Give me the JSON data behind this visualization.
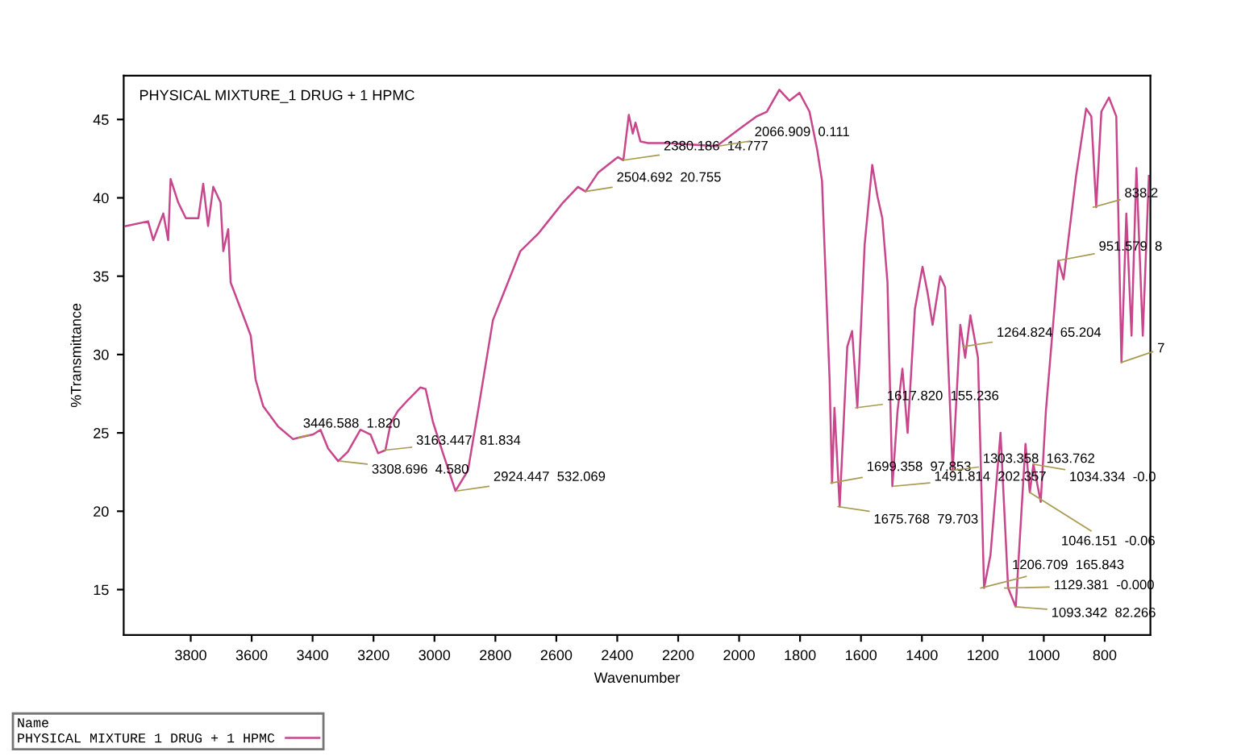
{
  "chart_data": {
    "type": "line",
    "title": "PHYSICAL MIXTURE_1 DRUG + 1 HPMC",
    "xlabel": "Wavenumber",
    "ylabel": "%Transmittance",
    "legend_title": "Name",
    "legend": "bottom left",
    "grid": false,
    "marker": "none",
    "line_style": "solid",
    "xlim": [
      4020,
      650
    ],
    "xticks": [
      3800,
      3600,
      3400,
      3200,
      3000,
      2800,
      2600,
      2400,
      2200,
      2000,
      1800,
      1600,
      1400,
      1200,
      1000,
      800
    ],
    "ylim": [
      12.1,
      47.8
    ],
    "yticks": [
      15,
      20,
      25,
      30,
      35,
      40,
      45
    ],
    "series": [
      {
        "name": "PHYSICAL MIXTURE 1 DRUG + 1 HPMC",
        "color": "#c8468c",
        "x": [
          4013,
          3940,
          3923,
          3890,
          3874,
          3866,
          3841,
          3816,
          3775,
          3759,
          3743,
          3726,
          3702,
          3693,
          3677,
          3669,
          3628,
          3603,
          3587,
          3562,
          3513,
          3464,
          3446,
          3398,
          3374,
          3349,
          3316,
          3284,
          3243,
          3210,
          3185,
          3161,
          3144,
          3120,
          3087,
          3046,
          3029,
          3005,
          2972,
          2931,
          2890,
          2857,
          2808,
          2759,
          2718,
          2660,
          2627,
          2578,
          2529,
          2504,
          2463,
          2398,
          2380,
          2362,
          2349,
          2340,
          2324,
          2299,
          2239,
          2074,
          1992,
          1942,
          1909,
          1868,
          1835,
          1802,
          1769,
          1744,
          1728,
          1703,
          1695,
          1687,
          1670,
          1645,
          1629,
          1612,
          1588,
          1563,
          1546,
          1530,
          1513,
          1497,
          1480,
          1464,
          1447,
          1423,
          1398,
          1381,
          1365,
          1340,
          1324,
          1299,
          1274,
          1258,
          1241,
          1216,
          1196,
          1175,
          1142,
          1117,
          1092,
          1060,
          1046,
          1034,
          1010,
          993,
          952,
          935,
          894,
          861,
          844,
          828,
          811,
          786,
          762,
          745,
          729,
          712,
          696,
          675,
          655
        ],
        "values": [
          38.2,
          38.5,
          37.3,
          39.0,
          37.3,
          41.2,
          39.7,
          38.7,
          38.7,
          40.9,
          38.2,
          40.7,
          39.7,
          36.6,
          38.0,
          34.6,
          32.5,
          31.2,
          28.4,
          26.7,
          25.4,
          24.6,
          24.7,
          24.9,
          25.2,
          24.0,
          23.2,
          23.8,
          25.2,
          24.9,
          23.7,
          23.9,
          25.6,
          26.4,
          27.1,
          27.9,
          27.8,
          25.7,
          23.7,
          21.3,
          22.6,
          26.4,
          32.2,
          34.6,
          36.6,
          37.7,
          38.5,
          39.7,
          40.7,
          40.4,
          41.6,
          42.6,
          42.4,
          45.3,
          44.1,
          44.8,
          43.6,
          43.5,
          43.5,
          43.3,
          44.5,
          45.2,
          45.5,
          46.9,
          46.2,
          46.7,
          45.5,
          43.1,
          41.1,
          28.4,
          21.8,
          26.6,
          20.3,
          30.5,
          31.5,
          26.6,
          37.0,
          42.1,
          40.1,
          38.7,
          34.6,
          21.6,
          26.4,
          29.1,
          25.0,
          32.9,
          35.6,
          33.9,
          31.9,
          35.0,
          34.3,
          22.6,
          31.9,
          29.8,
          32.5,
          29.8,
          15.1,
          17.2,
          25.0,
          15.1,
          13.9,
          24.3,
          21.2,
          23.0,
          20.6,
          26.4,
          36.0,
          34.8,
          41.4,
          45.7,
          45.2,
          39.4,
          45.5,
          46.4,
          45.2,
          29.5,
          39.0,
          31.2,
          41.9,
          31.2,
          41.4
        ]
      }
    ],
    "annotations": [
      {
        "text": "3446.588  1.820",
        "x": 3446,
        "y": 24.7
      },
      {
        "text": "3308.696  4.580",
        "x": 3309,
        "y": 23.2
      },
      {
        "text": "3163.447  81.834",
        "x": 3163,
        "y": 23.9
      },
      {
        "text": "2924.447  532.069",
        "x": 2924,
        "y": 21.3
      },
      {
        "text": "2504.692  20.755",
        "x": 2505,
        "y": 40.4
      },
      {
        "text": "2380.186  14.777",
        "x": 2380,
        "y": 42.4
      },
      {
        "text": "2066.909  0.111",
        "x": 2067,
        "y": 43.3
      },
      {
        "text": "1699.358  97.853",
        "x": 1699,
        "y": 21.8
      },
      {
        "text": "1675.768  79.703",
        "x": 1676,
        "y": 20.3
      },
      {
        "text": "1617.820  155.236",
        "x": 1618,
        "y": 26.6
      },
      {
        "text": "1491.814  202.357",
        "x": 1492,
        "y": 21.6
      },
      {
        "text": "1303.358  163.762",
        "x": 1303,
        "y": 22.6
      },
      {
        "text": "1264.824  65.204",
        "x": 1265,
        "y": 30.5
      },
      {
        "text": "1206.709  165.843",
        "x": 1207,
        "y": 15.1
      },
      {
        "text": "1129.381  -0.000",
        "x": 1129,
        "y": 15.1
      },
      {
        "text": "1093.342  82.266",
        "x": 1093,
        "y": 13.9
      },
      {
        "text": "1046.151  -0.06",
        "x": 1046,
        "y": 21.2
      },
      {
        "text": "1034.334  -0.0",
        "x": 1034,
        "y": 23.0
      },
      {
        "text": "951.579  8",
        "x": 952,
        "y": 36.0
      },
      {
        "text": "838.2",
        "x": 838,
        "y": 39.4
      },
      {
        "text": "7",
        "x": 745,
        "y": 29.5
      }
    ]
  }
}
